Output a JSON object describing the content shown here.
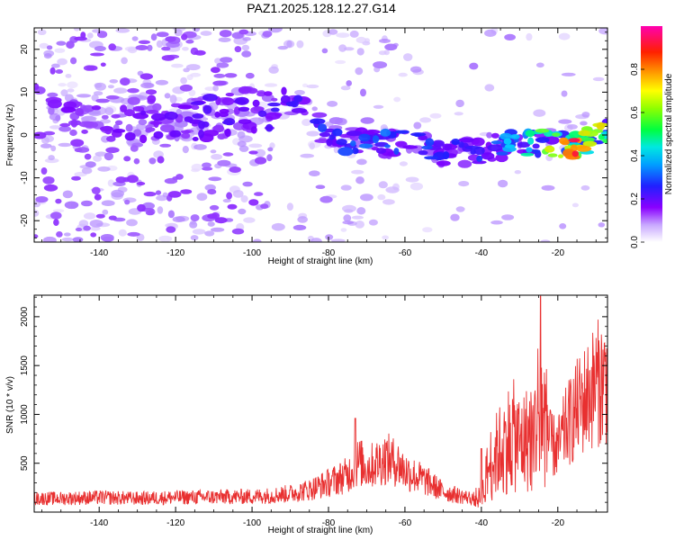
{
  "title": "PAZ1.2025.128.12.27.G14",
  "chart_data": [
    {
      "type": "heatmap",
      "xlabel": "Height of straight line (km)",
      "ylabel": "Frequency (Hz)",
      "xlim": [
        -157,
        -7
      ],
      "ylim": [
        -25,
        25
      ],
      "xticks": [
        -140,
        -120,
        -100,
        -80,
        -60,
        -40,
        -20
      ],
      "yticks": [
        -20,
        -10,
        0,
        10,
        20
      ],
      "colorbar": {
        "label": "Normalized spectral amplitude",
        "range": [
          0,
          1
        ],
        "ticks": [
          0.0,
          0.2,
          0.4,
          0.6,
          0.8
        ],
        "colormap": [
          "#ffffff",
          "#b48cff",
          "#7a00ff",
          "#2020ff",
          "#00d8ff",
          "#00ff60",
          "#c8ff00",
          "#ffb000",
          "#ff2000",
          "#ff00a0"
        ]
      },
      "ridge": [
        {
          "x": -150,
          "f": 6,
          "a": 0.2
        },
        {
          "x": -140,
          "f": 4,
          "a": 0.22
        },
        {
          "x": -130,
          "f": 4,
          "a": 0.22
        },
        {
          "x": -120,
          "f": 4,
          "a": 0.24
        },
        {
          "x": -110,
          "f": 4,
          "a": 0.25
        },
        {
          "x": -100,
          "f": 6,
          "a": 0.26
        },
        {
          "x": -92,
          "f": 7,
          "a": 0.28
        },
        {
          "x": -85,
          "f": 5,
          "a": 0.3
        },
        {
          "x": -80,
          "f": 0,
          "a": 0.33
        },
        {
          "x": -72,
          "f": -2,
          "a": 0.36
        },
        {
          "x": -65,
          "f": -2,
          "a": 0.36
        },
        {
          "x": -58,
          "f": -2,
          "a": 0.34
        },
        {
          "x": -50,
          "f": -4,
          "a": 0.32
        },
        {
          "x": -43,
          "f": -4,
          "a": 0.3
        },
        {
          "x": -38,
          "f": -3,
          "a": 0.35
        },
        {
          "x": -30,
          "f": -2,
          "a": 0.45
        },
        {
          "x": -25,
          "f": -2,
          "a": 0.55
        },
        {
          "x": -20,
          "f": -2,
          "a": 0.7
        },
        {
          "x": -16,
          "f": -3,
          "a": 0.88
        },
        {
          "x": -12,
          "f": -1,
          "a": 0.8
        },
        {
          "x": -8,
          "f": 0,
          "a": 0.7
        }
      ]
    },
    {
      "type": "line",
      "xlabel": "Height of straight line (km)",
      "ylabel": "SNR (10 * v/v)",
      "xlim": [
        -157,
        -7
      ],
      "ylim": [
        0,
        2220
      ],
      "xticks": [
        -140,
        -120,
        -100,
        -80,
        -60,
        -40,
        -20
      ],
      "yticks": [
        500,
        1000,
        1500,
        2000
      ],
      "color": "#e83030",
      "series": [
        {
          "x": [
            -157,
            -150,
            -140,
            -130,
            -120,
            -110,
            -100,
            -95,
            -90,
            -85,
            -80,
            -75,
            -72,
            -70,
            -65,
            -62,
            -60,
            -55,
            -50,
            -45,
            -42,
            -40,
            -38,
            -35,
            -32,
            -30,
            -28,
            -26,
            -25,
            -24,
            -22,
            -20,
            -18,
            -15,
            -12,
            -10,
            -7
          ],
          "y": [
            140,
            140,
            150,
            140,
            150,
            155,
            160,
            170,
            190,
            230,
            300,
            380,
            520,
            450,
            550,
            500,
            420,
            330,
            210,
            160,
            140,
            150,
            480,
            650,
            800,
            700,
            750,
            850,
            1100,
            1050,
            700,
            650,
            850,
            1050,
            1200,
            1320,
            1350
          ]
        }
      ],
      "peaks": [
        {
          "x": -73,
          "y": 960
        },
        {
          "x": -24.5,
          "y": 2210
        },
        {
          "x": -40,
          "y": 650
        }
      ]
    }
  ]
}
